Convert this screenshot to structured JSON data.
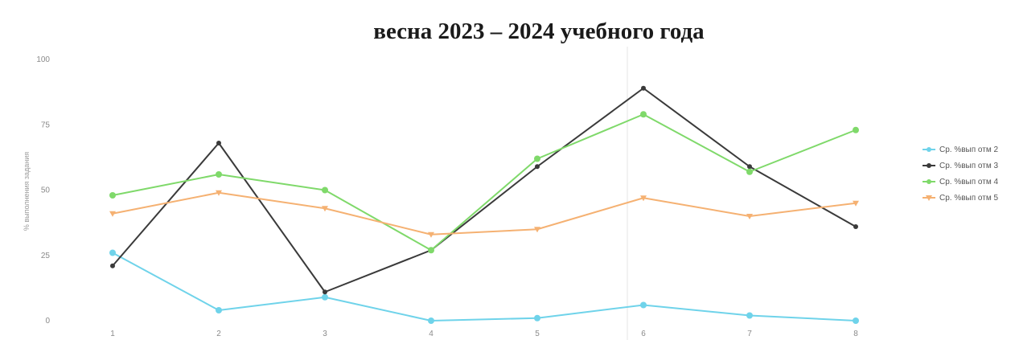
{
  "chart_data": {
    "type": "line",
    "title": "весна 2023 – 2024 учебного года",
    "ylabel": "% выполнения задания",
    "xlabel": "",
    "categories": [
      "1",
      "2",
      "3",
      "4",
      "5",
      "6",
      "7",
      "8"
    ],
    "yticks": [
      "0",
      "25",
      "50",
      "75",
      "100"
    ],
    "ylim": [
      0,
      100
    ],
    "grid": false,
    "legend_position": "right",
    "series": [
      {
        "name": "Ср. %вып отм 2",
        "color": "#6fd3ea",
        "marker": "circle",
        "values": [
          26,
          4,
          9,
          0,
          1,
          6,
          2,
          0
        ]
      },
      {
        "name": "Ср. %вып отм 3",
        "color": "#3a3a3a",
        "marker": "circle",
        "values": [
          21,
          68,
          11,
          27,
          59,
          89,
          59,
          36
        ]
      },
      {
        "name": "Ср. %вып отм 4",
        "color": "#7fd96a",
        "marker": "circle",
        "values": [
          48,
          56,
          50,
          27,
          62,
          79,
          57,
          73
        ]
      },
      {
        "name": "Ср. %вып отм 5",
        "color": "#f5b172",
        "marker": "triangle",
        "values": [
          41,
          49,
          43,
          33,
          35,
          47,
          40,
          45
        ]
      }
    ]
  }
}
